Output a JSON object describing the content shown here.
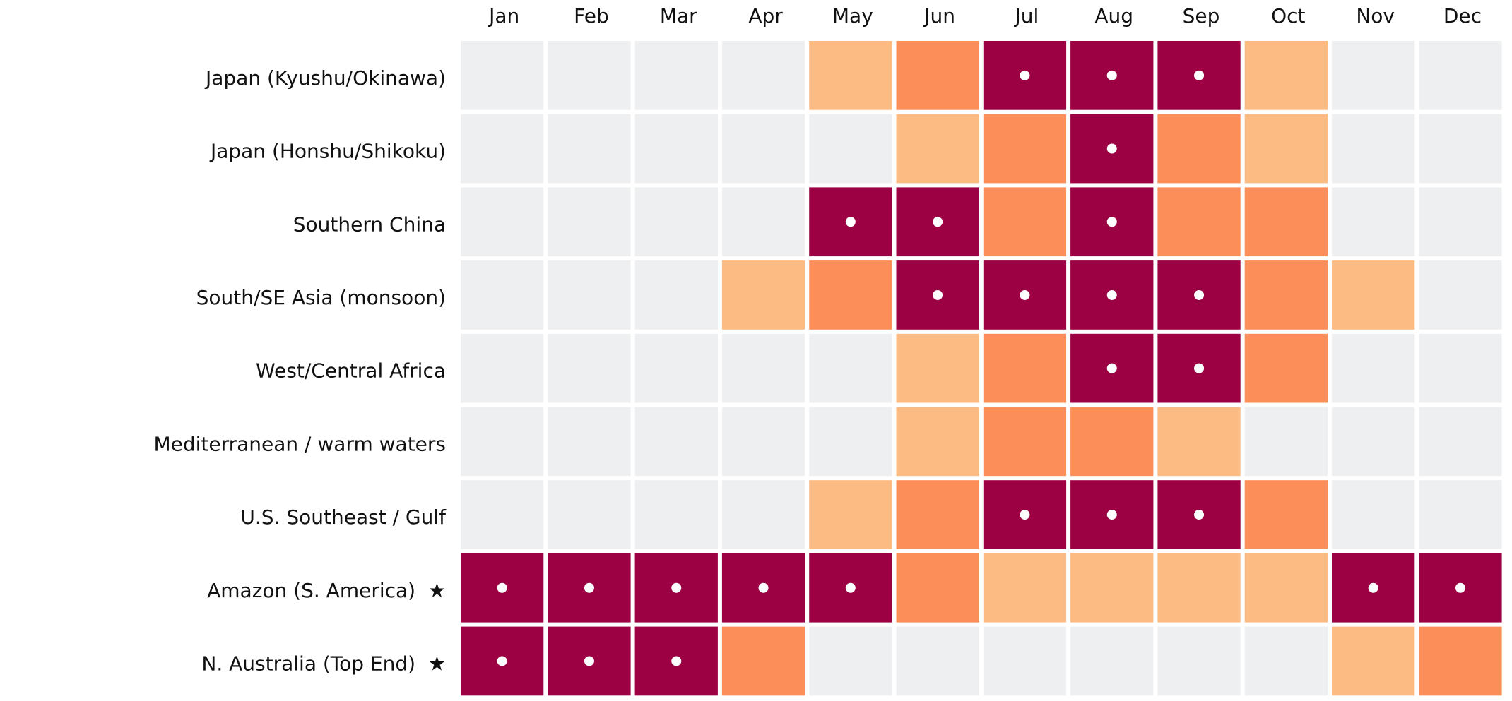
{
  "chart_data": {
    "type": "heatmap",
    "title": "",
    "xlabel": "",
    "ylabel": "",
    "months": [
      "Jan",
      "Feb",
      "Mar",
      "Apr",
      "May",
      "Jun",
      "Jul",
      "Aug",
      "Sep",
      "Oct",
      "Nov",
      "Dec"
    ],
    "regions": [
      "Japan (Kyushu/Okinawa)",
      "Japan (Honshu/Shikoku)",
      "Southern China",
      "South/SE Asia (monsoon)",
      "West/Central Africa",
      "Mediterranean / warm waters",
      "U.S. Southeast / Gulf",
      "Amazon (S. America)  ★",
      "N. Australia (Top End)  ★"
    ],
    "levels": [
      [
        0,
        0,
        0,
        0,
        1,
        2,
        3,
        3,
        3,
        1,
        0,
        0
      ],
      [
        0,
        0,
        0,
        0,
        0,
        1,
        2,
        3,
        2,
        1,
        0,
        0
      ],
      [
        0,
        0,
        0,
        0,
        3,
        3,
        2,
        3,
        2,
        2,
        0,
        0
      ],
      [
        0,
        0,
        0,
        1,
        2,
        3,
        3,
        3,
        3,
        2,
        1,
        0
      ],
      [
        0,
        0,
        0,
        0,
        0,
        1,
        2,
        3,
        3,
        2,
        0,
        0
      ],
      [
        0,
        0,
        0,
        0,
        0,
        1,
        2,
        2,
        1,
        0,
        0,
        0
      ],
      [
        0,
        0,
        0,
        0,
        1,
        2,
        3,
        3,
        3,
        2,
        0,
        0
      ],
      [
        3,
        3,
        3,
        3,
        3,
        2,
        1,
        1,
        1,
        1,
        3,
        3
      ],
      [
        3,
        3,
        3,
        2,
        0,
        0,
        0,
        0,
        0,
        0,
        1,
        2
      ]
    ],
    "level_colors": [
      "#eeeff1",
      "#fdbb84",
      "#fc8e59",
      "#9c0143"
    ],
    "peak_marker_level": 3,
    "peak_marker_color": "#ffffff",
    "grid": false,
    "legend": "none"
  }
}
